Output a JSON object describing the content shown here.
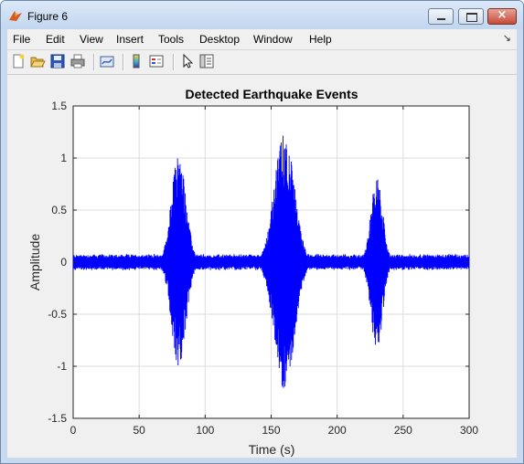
{
  "window": {
    "title": "Figure 6",
    "icon": "matlab-icon",
    "controls": {
      "minimize": "minimize-icon",
      "maximize": "maximize-icon",
      "close": "×"
    }
  },
  "menu": [
    "File",
    "Edit",
    "View",
    "Insert",
    "Tools",
    "Desktop",
    "Window",
    "Help"
  ],
  "menu_overflow": "↘",
  "toolbar": [
    "new-figure-icon",
    "open-file-icon",
    "save-icon",
    "print-icon",
    "link-plot-icon",
    "colorbar-icon",
    "legend-icon",
    "edit-plot-icon",
    "property-inspector-icon"
  ],
  "chart_data": {
    "type": "line",
    "title": "Detected Earthquake Events",
    "xlabel": "Time (s)",
    "ylabel": "Amplitude",
    "xlim": [
      0,
      300
    ],
    "ylim": [
      -1.5,
      1.5
    ],
    "xticks": [
      "0",
      "50",
      "100",
      "150",
      "200",
      "250",
      "300"
    ],
    "yticks": [
      "1.5",
      "1",
      "0.5",
      "0",
      "-0.5",
      "-1",
      "-1.5"
    ],
    "grid": true,
    "series": [
      {
        "color": "#0000ff",
        "noise_amplitude": 0.07,
        "events": [
          {
            "center": 80,
            "width": 5.5,
            "peak": 1.05,
            "trough": -1.02
          },
          {
            "center": 160,
            "width": 7.5,
            "peak": 1.25,
            "trough": -1.23
          },
          {
            "center": 230,
            "width": 4.5,
            "peak": 0.82,
            "trough": -0.85
          }
        ],
        "envelope_points": [
          [
            0,
            0.07
          ],
          [
            50,
            0.07
          ],
          [
            65,
            0.1
          ],
          [
            70,
            0.25
          ],
          [
            75,
            0.7
          ],
          [
            80,
            1.04
          ],
          [
            84,
            0.75
          ],
          [
            88,
            0.3
          ],
          [
            92,
            0.1
          ],
          [
            140,
            0.08
          ],
          [
            145,
            0.2
          ],
          [
            150,
            0.55
          ],
          [
            155,
            1.0
          ],
          [
            160,
            1.25
          ],
          [
            165,
            0.95
          ],
          [
            170,
            0.4
          ],
          [
            175,
            0.1
          ],
          [
            215,
            0.08
          ],
          [
            220,
            0.2
          ],
          [
            225,
            0.55
          ],
          [
            230,
            0.82
          ],
          [
            234,
            0.55
          ],
          [
            238,
            0.2
          ],
          [
            242,
            0.08
          ],
          [
            300,
            0.07
          ]
        ]
      }
    ]
  }
}
